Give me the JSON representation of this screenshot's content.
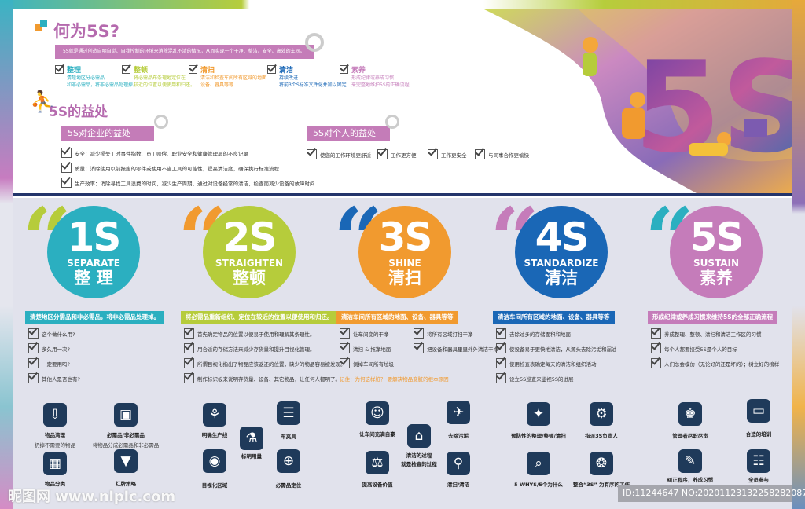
{
  "colors": {
    "s1": "#2bafc0",
    "s2": "#b6cc3b",
    "s3": "#f19a2f",
    "s4": "#1a67b6",
    "s5": "#c57cba",
    "title": "#b56aae",
    "navy": "#24356b"
  },
  "what": {
    "title": "何为5S?",
    "banner": "5S就是通过创造自明自觉、自我控制的环境来消除混乱不清的情况，从而实现一个干净、整洁、安全、高效的车间。",
    "items": [
      {
        "head": "整理",
        "l1": "清楚地区分必需品",
        "l2": "和非必需品，将非必需品处理掉。"
      },
      {
        "head": "整顿",
        "l1": "将必需品布条理地定位在",
        "l2": "较近的位置以便使用和归还。"
      },
      {
        "head": "清扫",
        "l1": "清洁和检查车间所有区域的地面",
        "l2": "设备、器具等等"
      },
      {
        "head": "清洁",
        "l1": "持续改进",
        "l2": "将前3个S标准文件化并加以固定"
      },
      {
        "head": "素养",
        "l1": "形成纪律或养成习惯",
        "l2": "来完整地维护5S的正确流程"
      }
    ]
  },
  "benefit": {
    "title": "5S的益处",
    "company": {
      "title": "5S对企业的益处",
      "items": [
        "安全：减少损失工时事件指数、员工赔偿、职业安全和健康管理局的不良记录",
        "质量：消除使用以前报废的零件或使用不当工具的可能性，提高清洁度，确保执行标准流程",
        "生产效率：消除寻找工具浪费的时间，减少生产周期，通过对设备经常的清洁，检查而减少设备的故障时间"
      ]
    },
    "personal": {
      "title": "5S对个人的益处",
      "items": [
        "使您的工作环境更舒适",
        "工作更方便",
        "工作更安全",
        "与同事合作更愉快"
      ]
    }
  },
  "hero": {
    "text": "5S"
  },
  "columns": [
    {
      "num": "1S",
      "en": "SEPARATE",
      "cn": "整 理",
      "banner": "清楚地区分需品和非必需品，将非必需品处理掉。",
      "checks": [
        "这个做什么用?",
        "多久用一次?",
        "一定要用吗?",
        "其他人是否也有?"
      ],
      "icons": [
        {
          "icon": "inbox-download-icon",
          "glyph": "⇩",
          "label": "物品清理",
          "sub": "扔掉不需要的物品"
        },
        {
          "icon": "box-sort-icon",
          "glyph": "▣",
          "label": "必需品/非必需品",
          "sub": "将物品分成必需品和非必需品"
        },
        {
          "icon": "category-grid-icon",
          "glyph": "▦",
          "label": "物品分类"
        },
        {
          "icon": "red-tag-icon",
          "glyph": "▼",
          "label": "红牌策略"
        }
      ]
    },
    {
      "num": "2S",
      "en": "STRAIGHTEN",
      "cn": "整顿",
      "banner": "将必需品重新组织、定位在较近的位置以便使用和归还。",
      "checks": [
        "首先确定物品的位置以便易于使用和理解其条理性。",
        "用合适的存储方法来减少存货量和提升目视化管理。",
        "所谓目视化指出了物品应该返还的位置，缺少的物品容易被发现。",
        "制作标识板来说明存货量、设备、其它物品，让任何人都明了。"
      ],
      "icons": [
        {
          "icon": "production-line-icon",
          "glyph": "⚘",
          "label": "明确生产线"
        },
        {
          "icon": "fixture-board-icon",
          "glyph": "☰",
          "label": "车夹具"
        },
        {
          "icon": "flask-measure-icon",
          "glyph": "⚗",
          "label": "标明用量"
        },
        {
          "icon": "visual-area-icon",
          "glyph": "◉",
          "label": "目视化区域"
        },
        {
          "icon": "location-globe-icon",
          "glyph": "⊕",
          "label": "必需品定位"
        }
      ]
    },
    {
      "num": "3S",
      "en": "SHINE",
      "cn": "清扫",
      "banner": "清洁车间所有区域的地面、设备、器具等等",
      "checks": [
        "让车间变的干净",
        "清扫 & 拖净地面",
        "倒掉车间所有垃圾",
        "将所有区域打扫干净",
        "把设备和器具里里外外清洁干净"
      ],
      "note": "记住：为何这样脏？ 要解决物品变脏的根本原因",
      "icons": [
        {
          "icon": "team-pride-icon",
          "glyph": "☺",
          "label": "让车间充满自豪"
        },
        {
          "icon": "remove-dirt-icon",
          "glyph": "✈",
          "label": "去除污垢"
        },
        {
          "icon": "inspection-box-icon",
          "glyph": "⌂",
          "label": "清洁的过程",
          "sub": "就是检查的过程"
        },
        {
          "icon": "balance-value-icon",
          "glyph": "⚖",
          "label": "提高设备价值"
        },
        {
          "icon": "broom-bucket-icon",
          "glyph": "⚲",
          "label": "清扫/清洁"
        }
      ]
    },
    {
      "num": "4S",
      "en": "STANDARDIZE",
      "cn": "清洁",
      "banner": "清洁车间所有区域的地面、设备、器具等等",
      "checks": [
        "去除过多的存储面积和地面",
        "使设备易于更快地清洁，从源头去除污垢和漏油",
        "使用检查表确定每天的清洁和组织活动",
        "设立5S巡查来监视5S的进展"
      ],
      "icons": [
        {
          "icon": "lightbulb-team-icon",
          "glyph": "✦",
          "label": "预防性的整理/整顿/清扫"
        },
        {
          "icon": "assign-person-icon",
          "glyph": "⚙",
          "label": "指派3S负责人"
        },
        {
          "icon": "book-search-icon",
          "glyph": "⌕",
          "label": "5 WHYS/5个为什么"
        },
        {
          "icon": "integrate-work-icon",
          "glyph": "❂",
          "label": "整合“3S” 为有序的工作"
        }
      ]
    },
    {
      "num": "5S",
      "en": "SUSTAIN",
      "cn": "素养",
      "banner": "形成纪律或养成习惯来维持5S的全部正确流程",
      "checks": [
        "养成整理、整顿、清扫和清洁工作区的习惯",
        "每个人都要接受5S是个人的目标",
        "人们总会模仿（无论好的还是坏的）；树立好的榜样"
      ],
      "icons": [
        {
          "icon": "manager-gear-icon",
          "glyph": "♚",
          "label": "管理者尽职尽责"
        },
        {
          "icon": "training-board-icon",
          "glyph": "▭",
          "label": "合适的培训"
        },
        {
          "icon": "monitor-plan-icon",
          "glyph": "✎",
          "label": "纠正程序，养成习惯"
        },
        {
          "icon": "people-chat-icon",
          "glyph": "☷",
          "label": "全员参与"
        }
      ]
    }
  ],
  "watermark": "昵图网 www.nipic.com",
  "idbar": "ID:11244647 NO:20201123132258282087"
}
